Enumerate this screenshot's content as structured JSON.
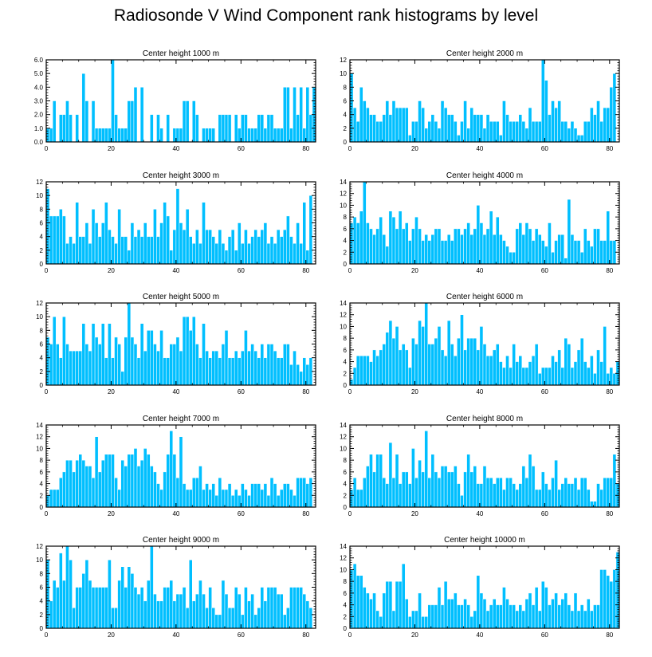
{
  "title": "Radiosonde V Wind Component rank histograms by level",
  "colors": {
    "bar": "#00bfff",
    "bar_edge": "#ffffff",
    "axis": "#000000"
  },
  "chart_data": [
    {
      "type": "bar",
      "title": "Center height 1000 m",
      "xlim": [
        0,
        83
      ],
      "ylim": [
        0,
        6
      ],
      "yticks": [
        "0.0",
        "1.0",
        "2.0",
        "3.0",
        "4.0",
        "5.0",
        "6.0"
      ],
      "xticks": [
        "0",
        "20",
        "40",
        "60",
        "80"
      ],
      "values": [
        1,
        1,
        3,
        0,
        2,
        2,
        3,
        2,
        0,
        2,
        0,
        5,
        3,
        0,
        3,
        1,
        1,
        1,
        1,
        1,
        6,
        2,
        1,
        1,
        1,
        3,
        3,
        4,
        0,
        4,
        0,
        0,
        2,
        0,
        2,
        1,
        0,
        2,
        0,
        1,
        1,
        1,
        3,
        3,
        0,
        3,
        2,
        0,
        1,
        1,
        1,
        1,
        0,
        2,
        2,
        2,
        2,
        0,
        2,
        1,
        2,
        2,
        1,
        1,
        1,
        2,
        2,
        1,
        2,
        2,
        1,
        1,
        1,
        4,
        4,
        1,
        4,
        2,
        4,
        1,
        4,
        2,
        4
      ]
    },
    {
      "type": "bar",
      "title": "Center height 2000 m",
      "xlim": [
        0,
        83
      ],
      "ylim": [
        0,
        12
      ],
      "yticks": [
        "0",
        "2",
        "4",
        "6",
        "8",
        "10",
        "12"
      ],
      "xticks": [
        "0",
        "20",
        "40",
        "60",
        "80"
      ],
      "values": [
        10,
        5,
        3,
        8,
        6,
        5,
        4,
        4,
        3,
        3,
        4,
        6,
        4,
        6,
        5,
        5,
        5,
        5,
        1,
        3,
        3,
        6,
        5,
        2,
        3,
        4,
        3,
        2,
        6,
        5,
        4,
        4,
        3,
        1,
        3,
        6,
        2,
        5,
        4,
        4,
        4,
        2,
        4,
        3,
        3,
        3,
        1,
        6,
        4,
        3,
        3,
        3,
        4,
        3,
        2,
        5,
        3,
        3,
        3,
        12,
        9,
        4,
        6,
        5,
        6,
        3,
        3,
        2,
        3,
        2,
        1,
        1,
        3,
        3,
        5,
        4,
        6,
        3,
        5,
        5,
        8,
        10
      ]
    },
    {
      "type": "bar",
      "title": "Center height 3000 m",
      "xlim": [
        0,
        83
      ],
      "ylim": [
        0,
        12
      ],
      "yticks": [
        "0",
        "2",
        "4",
        "6",
        "8",
        "10",
        "12"
      ],
      "xticks": [
        "0",
        "20",
        "40",
        "60",
        "80"
      ],
      "values": [
        11,
        7,
        7,
        7,
        8,
        7,
        3,
        4,
        3,
        9,
        4,
        4,
        6,
        3,
        8,
        6,
        4,
        6,
        9,
        5,
        4,
        3,
        8,
        4,
        4,
        2,
        6,
        4,
        5,
        4,
        6,
        4,
        4,
        8,
        4,
        6,
        9,
        7,
        2,
        5,
        11,
        6,
        5,
        8,
        4,
        3,
        5,
        3,
        9,
        5,
        5,
        4,
        3,
        5,
        3,
        2,
        4,
        5,
        2,
        6,
        3,
        5,
        3,
        4,
        5,
        4,
        5,
        6,
        3,
        4,
        3,
        5,
        4,
        5,
        7,
        4,
        3,
        6,
        3,
        9,
        2,
        10
      ]
    },
    {
      "type": "bar",
      "title": "Center height 4000 m",
      "xlim": [
        0,
        83
      ],
      "ylim": [
        0,
        14
      ],
      "yticks": [
        "0",
        "2",
        "4",
        "6",
        "8",
        "10",
        "12",
        "14"
      ],
      "xticks": [
        "0",
        "20",
        "40",
        "60",
        "80"
      ],
      "values": [
        7,
        8,
        7,
        9,
        14,
        7,
        6,
        5,
        6,
        8,
        5,
        3,
        9,
        8,
        6,
        9,
        6,
        7,
        4,
        6,
        8,
        6,
        4,
        5,
        4,
        5,
        6,
        6,
        4,
        4,
        5,
        4,
        6,
        6,
        5,
        6,
        7,
        5,
        6,
        10,
        7,
        5,
        6,
        9,
        5,
        8,
        5,
        4,
        3,
        2,
        2,
        6,
        7,
        5,
        7,
        6,
        4,
        6,
        5,
        4,
        3,
        7,
        2,
        4,
        5,
        5,
        1,
        11,
        5,
        4,
        4,
        2,
        6,
        4,
        3,
        6,
        6,
        4,
        4,
        9,
        4,
        4
      ]
    },
    {
      "type": "bar",
      "title": "Center height 5000 m",
      "xlim": [
        0,
        83
      ],
      "ylim": [
        0,
        12
      ],
      "yticks": [
        "0",
        "2",
        "4",
        "6",
        "8",
        "10",
        "12"
      ],
      "xticks": [
        "0",
        "20",
        "40",
        "60",
        "80"
      ],
      "values": [
        7,
        6,
        10,
        6,
        4,
        10,
        6,
        5,
        5,
        5,
        5,
        9,
        6,
        5,
        9,
        7,
        6,
        9,
        4,
        9,
        4,
        7,
        6,
        2,
        7,
        12,
        7,
        6,
        4,
        9,
        5,
        8,
        8,
        6,
        5,
        8,
        4,
        4,
        6,
        6,
        7,
        5,
        10,
        10,
        8,
        10,
        6,
        4,
        9,
        5,
        4,
        5,
        5,
        4,
        6,
        8,
        4,
        4,
        5,
        4,
        5,
        8,
        5,
        6,
        5,
        4,
        6,
        4,
        6,
        6,
        5,
        4,
        4,
        6,
        6,
        3,
        5,
        3,
        2,
        4,
        3,
        4
      ]
    },
    {
      "type": "bar",
      "title": "Center height 6000 m",
      "xlim": [
        0,
        83
      ],
      "ylim": [
        0,
        14
      ],
      "yticks": [
        "0",
        "2",
        "4",
        "6",
        "8",
        "10",
        "12",
        "14"
      ],
      "xticks": [
        "0",
        "20",
        "40",
        "60",
        "80"
      ],
      "values": [
        1,
        3,
        5,
        5,
        5,
        5,
        4,
        6,
        5,
        6,
        7,
        9,
        11,
        8,
        10,
        6,
        7,
        6,
        3,
        8,
        7,
        11,
        10,
        14,
        7,
        7,
        8,
        10,
        6,
        5,
        11,
        7,
        5,
        8,
        12,
        6,
        8,
        8,
        8,
        6,
        10,
        7,
        5,
        5,
        6,
        7,
        4,
        3,
        5,
        3,
        7,
        4,
        5,
        3,
        3,
        4,
        5,
        7,
        2,
        3,
        3,
        3,
        5,
        4,
        6,
        3,
        8,
        7,
        3,
        4,
        6,
        8,
        4,
        3,
        5,
        2,
        6,
        4,
        10,
        2,
        3,
        2,
        4,
        4
      ]
    },
    {
      "type": "bar",
      "title": "Center height 7000 m",
      "xlim": [
        0,
        83
      ],
      "ylim": [
        0,
        14
      ],
      "yticks": [
        "0",
        "2",
        "4",
        "6",
        "8",
        "10",
        "12",
        "14"
      ],
      "xticks": [
        "0",
        "20",
        "40",
        "60",
        "80"
      ],
      "values": [
        2,
        3,
        3,
        3,
        5,
        6,
        8,
        8,
        6,
        8,
        9,
        8,
        7,
        7,
        5,
        12,
        6,
        8,
        9,
        9,
        9,
        5,
        3,
        8,
        7,
        9,
        9,
        10,
        7,
        8,
        10,
        9,
        7,
        6,
        4,
        3,
        6,
        9,
        13,
        9,
        5,
        12,
        4,
        3,
        3,
        5,
        5,
        7,
        3,
        4,
        3,
        4,
        2,
        5,
        3,
        3,
        4,
        2,
        3,
        2,
        4,
        3,
        2,
        4,
        4,
        4,
        3,
        4,
        2,
        5,
        4,
        2,
        3,
        4,
        4,
        3,
        2,
        5,
        5,
        5,
        4,
        5
      ]
    },
    {
      "type": "bar",
      "title": "Center height 8000 m",
      "xlim": [
        0,
        83
      ],
      "ylim": [
        0,
        14
      ],
      "yticks": [
        "0",
        "2",
        "4",
        "6",
        "8",
        "10",
        "12",
        "14"
      ],
      "xticks": [
        "0",
        "20",
        "40",
        "60",
        "80"
      ],
      "values": [
        3,
        5,
        3,
        3,
        5,
        7,
        9,
        6,
        9,
        9,
        5,
        4,
        11,
        5,
        9,
        4,
        6,
        6,
        4,
        10,
        5,
        8,
        6,
        13,
        5,
        9,
        6,
        5,
        7,
        7,
        6,
        6,
        7,
        4,
        2,
        6,
        9,
        6,
        7,
        4,
        4,
        7,
        5,
        5,
        4,
        5,
        5,
        3,
        5,
        5,
        4,
        3,
        4,
        7,
        5,
        9,
        7,
        3,
        3,
        6,
        4,
        3,
        5,
        8,
        3,
        4,
        5,
        4,
        4,
        5,
        3,
        5,
        5,
        3,
        1,
        1,
        4,
        3,
        5,
        5,
        5,
        9,
        4
      ]
    },
    {
      "type": "bar",
      "title": "Center height 9000 m",
      "xlim": [
        0,
        83
      ],
      "ylim": [
        0,
        12
      ],
      "yticks": [
        "0",
        "2",
        "4",
        "6",
        "8",
        "10",
        "12"
      ],
      "xticks": [
        "0",
        "20",
        "40",
        "60",
        "80"
      ],
      "values": [
        10,
        4,
        7,
        6,
        11,
        7,
        12,
        10,
        3,
        6,
        6,
        8,
        10,
        7,
        6,
        6,
        6,
        6,
        6,
        10,
        3,
        3,
        7,
        9,
        6,
        9,
        8,
        6,
        5,
        6,
        4,
        7,
        12,
        5,
        4,
        4,
        6,
        6,
        7,
        4,
        5,
        5,
        6,
        3,
        10,
        4,
        5,
        7,
        5,
        3,
        6,
        3,
        2,
        2,
        7,
        5,
        3,
        3,
        6,
        5,
        2,
        6,
        4,
        5,
        2,
        3,
        6,
        4,
        6,
        6,
        6,
        5,
        5,
        2,
        3,
        6,
        6,
        6,
        6,
        5,
        4,
        3
      ]
    },
    {
      "type": "bar",
      "title": "Center height 10000 m",
      "xlim": [
        0,
        83
      ],
      "ylim": [
        0,
        14
      ],
      "yticks": [
        "0",
        "2",
        "4",
        "6",
        "8",
        "10",
        "12",
        "14"
      ],
      "xticks": [
        "0",
        "20",
        "40",
        "60",
        "80"
      ],
      "values": [
        10,
        11,
        9,
        9,
        7,
        6,
        5,
        6,
        3,
        2,
        6,
        8,
        8,
        3,
        8,
        8,
        11,
        5,
        2,
        3,
        3,
        6,
        2,
        2,
        4,
        4,
        4,
        7,
        4,
        8,
        5,
        5,
        6,
        4,
        4,
        5,
        4,
        2,
        3,
        9,
        6,
        5,
        3,
        4,
        5,
        4,
        4,
        7,
        5,
        4,
        4,
        3,
        4,
        3,
        5,
        6,
        4,
        7,
        3,
        8,
        7,
        4,
        5,
        6,
        4,
        5,
        6,
        4,
        3,
        6,
        3,
        4,
        3,
        5,
        3,
        4,
        4,
        10,
        10,
        9,
        8,
        10,
        13,
        5,
        9
      ]
    }
  ]
}
